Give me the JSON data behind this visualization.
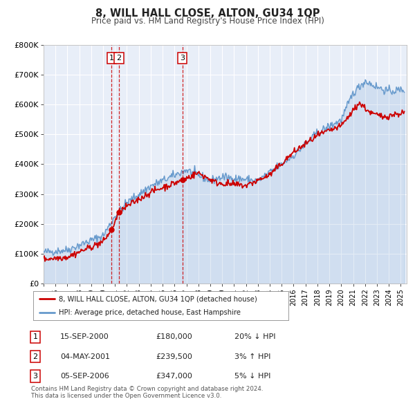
{
  "title": "8, WILL HALL CLOSE, ALTON, GU34 1QP",
  "subtitle": "Price paid vs. HM Land Registry's House Price Index (HPI)",
  "legend_line1": "8, WILL HALL CLOSE, ALTON, GU34 1QP (detached house)",
  "legend_line2": "HPI: Average price, detached house, East Hampshire",
  "sale_color": "#cc0000",
  "hpi_color": "#6699cc",
  "background_color": "#e8eef8",
  "grid_color": "#ffffff",
  "ylim": [
    0,
    800000
  ],
  "yticks": [
    0,
    100000,
    200000,
    300000,
    400000,
    500000,
    600000,
    700000,
    800000
  ],
  "ytick_labels": [
    "£0",
    "£100K",
    "£200K",
    "£300K",
    "£400K",
    "£500K",
    "£600K",
    "£700K",
    "£800K"
  ],
  "sales": [
    {
      "date_num": 2000.71,
      "price": 180000,
      "label": "1"
    },
    {
      "date_num": 2001.34,
      "price": 239500,
      "label": "2"
    },
    {
      "date_num": 2006.67,
      "price": 347000,
      "label": "3"
    }
  ],
  "vlines": [
    {
      "x": 2000.71,
      "label": "1"
    },
    {
      "x": 2001.34,
      "label": "2"
    },
    {
      "x": 2006.67,
      "label": "3"
    }
  ],
  "table_rows": [
    {
      "num": "1",
      "date": "15-SEP-2000",
      "price": "£180,000",
      "hpi": "20% ↓ HPI"
    },
    {
      "num": "2",
      "date": "04-MAY-2001",
      "price": "£239,500",
      "hpi": "3% ↑ HPI"
    },
    {
      "num": "3",
      "date": "05-SEP-2006",
      "price": "£347,000",
      "hpi": "5% ↓ HPI"
    }
  ],
  "footer": "Contains HM Land Registry data © Crown copyright and database right 2024.\nThis data is licensed under the Open Government Licence v3.0.",
  "xmin": 1995.0,
  "xmax": 2025.5
}
